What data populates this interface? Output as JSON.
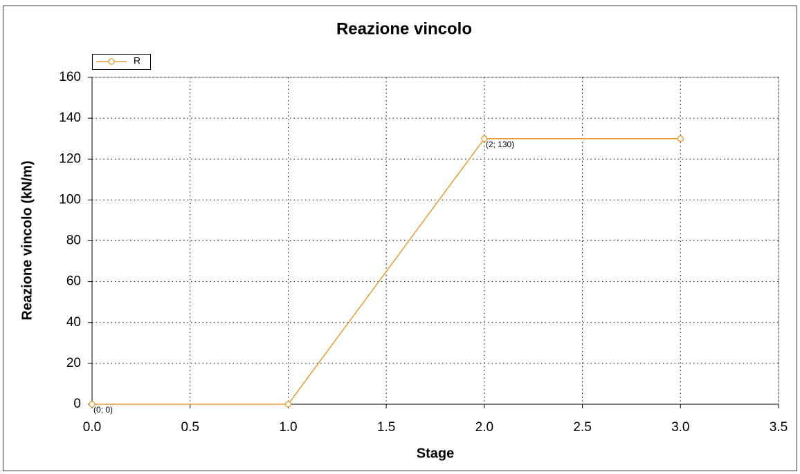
{
  "chart_data": {
    "type": "line",
    "title": "Reazione vincolo",
    "x_label": "Stage",
    "y_label": "Reazione vincolo (kN/m)",
    "x": [
      0,
      1,
      2,
      3
    ],
    "series": [
      {
        "name": "R",
        "color": "#e89a2c",
        "values": [
          0,
          0,
          130,
          130
        ]
      }
    ],
    "xlim": [
      0,
      3.5
    ],
    "xticks": [
      {
        "value": 0,
        "label": "0.0"
      },
      0.5,
      {
        "value": 1,
        "label": "1.0"
      },
      1.5,
      {
        "value": 2,
        "label": "2.0"
      },
      2.5,
      {
        "value": 3,
        "label": "3.0"
      },
      3.5
    ],
    "ylim": [
      0,
      160
    ],
    "yticks": [
      0,
      20,
      40,
      60,
      80,
      100,
      120,
      140,
      160
    ],
    "grid": true,
    "legend": "top-left",
    "annotations": [
      {
        "text": "(0; 0)",
        "x": 0,
        "y": 0
      },
      {
        "text": "(2; 130)",
        "x": 2,
        "y": 130
      }
    ]
  }
}
